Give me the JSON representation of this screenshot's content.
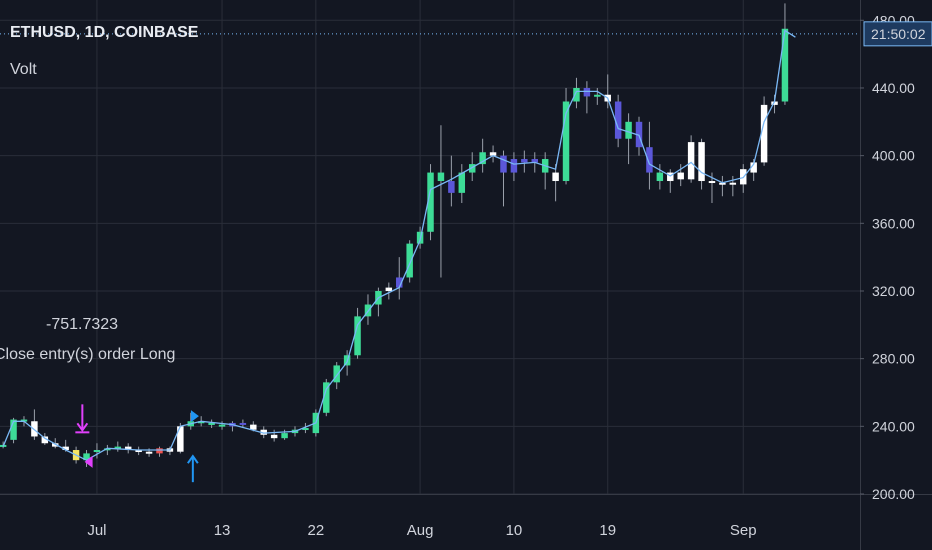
{
  "header": {
    "symbol_line": "ETHUSD, 1D, COINBASE",
    "indicator": "Volt"
  },
  "trade_annotation": {
    "pnl": "-751.7323",
    "order": "Close entry(s) order Long"
  },
  "colors": {
    "background": "#131722",
    "axis_text": "#d1d4dc",
    "grid": "#2a2e39",
    "bull": "#3ddc97",
    "bear": "#ffffff",
    "purple": "#5b57d9",
    "line": "#7ab8f5",
    "countdown_bg": "#1e3a5f",
    "close_marker": "#e040fb",
    "entry_marker": "#2196f3"
  },
  "chart_data": {
    "type": "candlestick",
    "title": "ETHUSD, 1D, COINBASE",
    "y_axis": {
      "ticks": [
        "200.00",
        "240.00",
        "280.00",
        "320.00",
        "360.00",
        "400.00",
        "440.00",
        "480.00"
      ],
      "ylim": [
        200,
        492
      ],
      "side": "right"
    },
    "x_axis": {
      "ticks": [
        {
          "label": "Jul",
          "day": 0
        },
        {
          "label": "13",
          "day": 12
        },
        {
          "label": "22",
          "day": 21
        },
        {
          "label": "Aug",
          "day": 31
        },
        {
          "label": "10",
          "day": 40
        },
        {
          "label": "19",
          "day": 49
        },
        {
          "label": "Sep",
          "day": 62
        }
      ],
      "day_range": [
        -9.3,
        73.2
      ]
    },
    "countdown": "21:50:02",
    "countdown_price": 472,
    "grid": true,
    "candles": [
      {
        "day": -9,
        "o": 229,
        "h": 231,
        "l": 227,
        "c": 229,
        "color": "bull"
      },
      {
        "day": -8,
        "o": 232,
        "h": 245,
        "l": 230,
        "c": 244,
        "color": "bull"
      },
      {
        "day": -7,
        "o": 244,
        "h": 246,
        "l": 240,
        "c": 243,
        "color": "bull"
      },
      {
        "day": -6,
        "o": 243,
        "h": 250,
        "l": 232,
        "c": 234,
        "color": "bear"
      },
      {
        "day": -5,
        "o": 234,
        "h": 236,
        "l": 229,
        "c": 230,
        "color": "bear"
      },
      {
        "day": -4,
        "o": 230,
        "h": 233,
        "l": 227,
        "c": 228,
        "color": "bear"
      },
      {
        "day": -3,
        "o": 228,
        "h": 232,
        "l": 225,
        "c": 226,
        "color": "bear"
      },
      {
        "day": -2,
        "o": 226,
        "h": 228,
        "l": 218,
        "c": 220,
        "color": "yellow"
      },
      {
        "day": -1,
        "o": 220,
        "h": 226,
        "l": 216,
        "c": 224,
        "color": "bull"
      },
      {
        "day": 0,
        "o": 225,
        "h": 230,
        "l": 221,
        "c": 226,
        "color": "bull"
      },
      {
        "day": 1,
        "o": 226,
        "h": 229,
        "l": 223,
        "c": 227,
        "color": "bull"
      },
      {
        "day": 2,
        "o": 227,
        "h": 231,
        "l": 225,
        "c": 228,
        "color": "bull"
      },
      {
        "day": 3,
        "o": 228,
        "h": 230,
        "l": 224,
        "c": 226,
        "color": "bear"
      },
      {
        "day": 4,
        "o": 226,
        "h": 228,
        "l": 223,
        "c": 225,
        "color": "bear"
      },
      {
        "day": 5,
        "o": 225,
        "h": 227,
        "l": 222,
        "c": 224,
        "color": "bear"
      },
      {
        "day": 6,
        "o": 224,
        "h": 228,
        "l": 222,
        "c": 227,
        "color": "red"
      },
      {
        "day": 7,
        "o": 227,
        "h": 228,
        "l": 223,
        "c": 225,
        "color": "bear"
      },
      {
        "day": 8,
        "o": 225,
        "h": 242,
        "l": 224,
        "c": 240,
        "color": "bear"
      },
      {
        "day": 9,
        "o": 240,
        "h": 248,
        "l": 238,
        "c": 243,
        "color": "bull"
      },
      {
        "day": 10,
        "o": 243,
        "h": 246,
        "l": 240,
        "c": 242,
        "color": "bull"
      },
      {
        "day": 11,
        "o": 242,
        "h": 244,
        "l": 239,
        "c": 241,
        "color": "bull"
      },
      {
        "day": 12,
        "o": 241,
        "h": 243,
        "l": 238,
        "c": 240,
        "color": "bull"
      },
      {
        "day": 13,
        "o": 240,
        "h": 243,
        "l": 237,
        "c": 242,
        "color": "purple"
      },
      {
        "day": 14,
        "o": 242,
        "h": 244,
        "l": 239,
        "c": 241,
        "color": "purple"
      },
      {
        "day": 15,
        "o": 241,
        "h": 243,
        "l": 237,
        "c": 238,
        "color": "bear"
      },
      {
        "day": 16,
        "o": 238,
        "h": 240,
        "l": 233,
        "c": 235,
        "color": "bear"
      },
      {
        "day": 17,
        "o": 235,
        "h": 238,
        "l": 231,
        "c": 233,
        "color": "bear"
      },
      {
        "day": 18,
        "o": 233,
        "h": 238,
        "l": 232,
        "c": 236,
        "color": "bull"
      },
      {
        "day": 19,
        "o": 236,
        "h": 240,
        "l": 234,
        "c": 238,
        "color": "bull"
      },
      {
        "day": 20,
        "o": 238,
        "h": 242,
        "l": 236,
        "c": 239,
        "color": "bull"
      },
      {
        "day": 21,
        "o": 236,
        "h": 250,
        "l": 234,
        "c": 248,
        "color": "bull"
      },
      {
        "day": 22,
        "o": 248,
        "h": 268,
        "l": 246,
        "c": 266,
        "color": "bull"
      },
      {
        "day": 23,
        "o": 266,
        "h": 278,
        "l": 262,
        "c": 276,
        "color": "bull"
      },
      {
        "day": 24,
        "o": 276,
        "h": 285,
        "l": 270,
        "c": 282,
        "color": "bull"
      },
      {
        "day": 25,
        "o": 282,
        "h": 310,
        "l": 280,
        "c": 305,
        "color": "bull"
      },
      {
        "day": 26,
        "o": 305,
        "h": 318,
        "l": 300,
        "c": 312,
        "color": "bull"
      },
      {
        "day": 27,
        "o": 312,
        "h": 322,
        "l": 305,
        "c": 320,
        "color": "bull"
      },
      {
        "day": 28,
        "o": 320,
        "h": 325,
        "l": 315,
        "c": 322,
        "color": "bear"
      },
      {
        "day": 29,
        "o": 322,
        "h": 340,
        "l": 315,
        "c": 328,
        "color": "purple"
      },
      {
        "day": 30,
        "o": 328,
        "h": 350,
        "l": 325,
        "c": 348,
        "color": "bull"
      },
      {
        "day": 31,
        "o": 348,
        "h": 358,
        "l": 345,
        "c": 355,
        "color": "bull"
      },
      {
        "day": 32,
        "o": 355,
        "h": 395,
        "l": 350,
        "c": 390,
        "color": "bull"
      },
      {
        "day": 33,
        "o": 390,
        "h": 418,
        "l": 328,
        "c": 385,
        "color": "bull"
      },
      {
        "day": 34,
        "o": 385,
        "h": 400,
        "l": 370,
        "c": 378,
        "color": "purple"
      },
      {
        "day": 35,
        "o": 378,
        "h": 395,
        "l": 372,
        "c": 390,
        "color": "bull"
      },
      {
        "day": 36,
        "o": 390,
        "h": 402,
        "l": 385,
        "c": 395,
        "color": "bull"
      },
      {
        "day": 37,
        "o": 395,
        "h": 410,
        "l": 390,
        "c": 402,
        "color": "bull"
      },
      {
        "day": 38,
        "o": 402,
        "h": 406,
        "l": 396,
        "c": 400,
        "color": "bear"
      },
      {
        "day": 39,
        "o": 400,
        "h": 403,
        "l": 370,
        "c": 390,
        "color": "purple"
      },
      {
        "day": 40,
        "o": 390,
        "h": 402,
        "l": 385,
        "c": 398,
        "color": "purple"
      },
      {
        "day": 41,
        "o": 398,
        "h": 403,
        "l": 390,
        "c": 396,
        "color": "purple"
      },
      {
        "day": 42,
        "o": 396,
        "h": 402,
        "l": 390,
        "c": 398,
        "color": "purple"
      },
      {
        "day": 43,
        "o": 398,
        "h": 402,
        "l": 380,
        "c": 390,
        "color": "bull"
      },
      {
        "day": 44,
        "o": 390,
        "h": 395,
        "l": 373,
        "c": 385,
        "color": "bear"
      },
      {
        "day": 45,
        "o": 385,
        "h": 440,
        "l": 383,
        "c": 432,
        "color": "bull"
      },
      {
        "day": 46,
        "o": 432,
        "h": 446,
        "l": 428,
        "c": 440,
        "color": "bull"
      },
      {
        "day": 47,
        "o": 440,
        "h": 444,
        "l": 425,
        "c": 435,
        "color": "purple"
      },
      {
        "day": 48,
        "o": 435,
        "h": 440,
        "l": 430,
        "c": 436,
        "color": "bull"
      },
      {
        "day": 49,
        "o": 436,
        "h": 448,
        "l": 428,
        "c": 432,
        "color": "bear"
      },
      {
        "day": 50,
        "o": 432,
        "h": 436,
        "l": 405,
        "c": 410,
        "color": "purple"
      },
      {
        "day": 51,
        "o": 410,
        "h": 425,
        "l": 395,
        "c": 420,
        "color": "bull"
      },
      {
        "day": 52,
        "o": 420,
        "h": 423,
        "l": 400,
        "c": 405,
        "color": "purple"
      },
      {
        "day": 53,
        "o": 405,
        "h": 420,
        "l": 380,
        "c": 390,
        "color": "purple"
      },
      {
        "day": 54,
        "o": 390,
        "h": 395,
        "l": 380,
        "c": 385,
        "color": "bull"
      },
      {
        "day": 55,
        "o": 385,
        "h": 392,
        "l": 378,
        "c": 390,
        "color": "bear"
      },
      {
        "day": 56,
        "o": 390,
        "h": 395,
        "l": 382,
        "c": 386,
        "color": "bear"
      },
      {
        "day": 57,
        "o": 386,
        "h": 412,
        "l": 384,
        "c": 408,
        "color": "bear"
      },
      {
        "day": 58,
        "o": 408,
        "h": 410,
        "l": 380,
        "c": 385,
        "color": "bear"
      },
      {
        "day": 59,
        "o": 385,
        "h": 390,
        "l": 372,
        "c": 384,
        "color": "bear"
      },
      {
        "day": 60,
        "o": 384,
        "h": 388,
        "l": 376,
        "c": 384,
        "color": "bear"
      },
      {
        "day": 61,
        "o": 384,
        "h": 388,
        "l": 376,
        "c": 383,
        "color": "bear"
      },
      {
        "day": 62,
        "o": 383,
        "h": 395,
        "l": 378,
        "c": 392,
        "color": "bear"
      },
      {
        "day": 63,
        "o": 390,
        "h": 398,
        "l": 385,
        "c": 396,
        "color": "bear"
      },
      {
        "day": 64,
        "o": 396,
        "h": 435,
        "l": 394,
        "c": 430,
        "color": "bear"
      },
      {
        "day": 65,
        "o": 430,
        "h": 436,
        "l": 425,
        "c": 432,
        "color": "bear"
      },
      {
        "day": 66,
        "o": 432,
        "h": 490,
        "l": 430,
        "c": 475,
        "color": "bull"
      }
    ],
    "volt_line": [
      {
        "day": -9,
        "y": 228
      },
      {
        "day": -8,
        "y": 243
      },
      {
        "day": -7,
        "y": 243
      },
      {
        "day": -5,
        "y": 233
      },
      {
        "day": -3,
        "y": 226
      },
      {
        "day": -1,
        "y": 220
      },
      {
        "day": 1,
        "y": 227
      },
      {
        "day": 4,
        "y": 226
      },
      {
        "day": 7,
        "y": 226
      },
      {
        "day": 8,
        "y": 240
      },
      {
        "day": 10,
        "y": 243
      },
      {
        "day": 13,
        "y": 241
      },
      {
        "day": 16,
        "y": 236
      },
      {
        "day": 19,
        "y": 237
      },
      {
        "day": 21,
        "y": 242
      },
      {
        "day": 22,
        "y": 262
      },
      {
        "day": 24,
        "y": 278
      },
      {
        "day": 25,
        "y": 300
      },
      {
        "day": 27,
        "y": 316
      },
      {
        "day": 29,
        "y": 322
      },
      {
        "day": 31,
        "y": 350
      },
      {
        "day": 32,
        "y": 380
      },
      {
        "day": 34,
        "y": 386
      },
      {
        "day": 36,
        "y": 393
      },
      {
        "day": 38,
        "y": 400
      },
      {
        "day": 40,
        "y": 395
      },
      {
        "day": 42,
        "y": 396
      },
      {
        "day": 44,
        "y": 392
      },
      {
        "day": 45,
        "y": 425
      },
      {
        "day": 46,
        "y": 438
      },
      {
        "day": 48,
        "y": 438
      },
      {
        "day": 49,
        "y": 434
      },
      {
        "day": 50,
        "y": 416
      },
      {
        "day": 52,
        "y": 412
      },
      {
        "day": 53,
        "y": 395
      },
      {
        "day": 55,
        "y": 388
      },
      {
        "day": 57,
        "y": 396
      },
      {
        "day": 58,
        "y": 390
      },
      {
        "day": 60,
        "y": 384
      },
      {
        "day": 62,
        "y": 387
      },
      {
        "day": 63,
        "y": 395
      },
      {
        "day": 64,
        "y": 420
      },
      {
        "day": 65,
        "y": 432
      },
      {
        "day": 66,
        "y": 474
      },
      {
        "day": 67,
        "y": 470
      }
    ],
    "markers": [
      {
        "kind": "close-long-arrow",
        "day": -1.4,
        "price": 253
      },
      {
        "kind": "exit-triangle",
        "day": -0.8,
        "price": 219
      },
      {
        "kind": "entry-long-arrow",
        "day": 9.2,
        "price": 207
      },
      {
        "kind": "entry-triangle",
        "day": 9.4,
        "price": 246
      }
    ]
  }
}
